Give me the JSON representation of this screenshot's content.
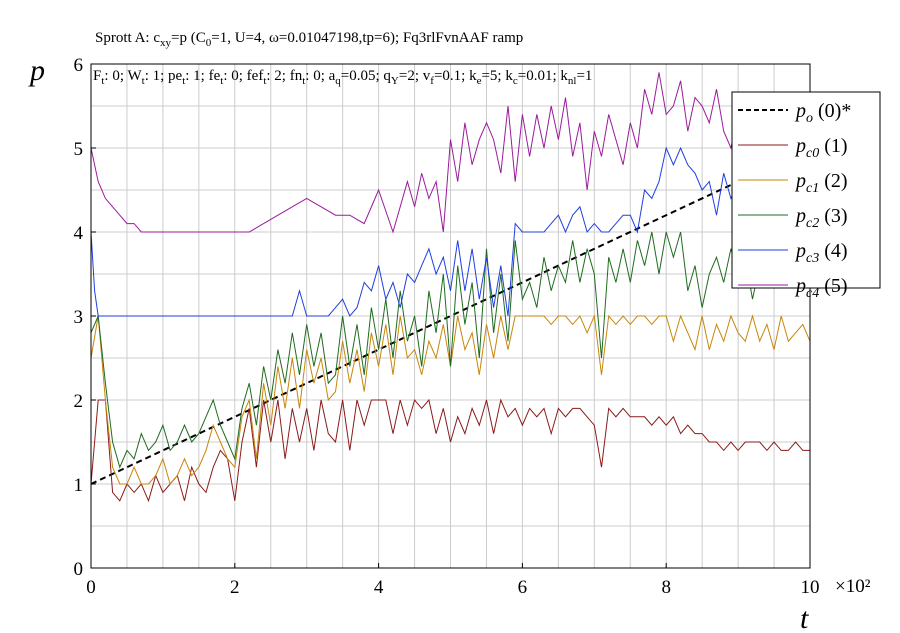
{
  "chart_data": {
    "type": "line",
    "title": "Sprott A: c_xy=p (C_0=1, U=4, ω=0.01047198,tp=6); Fq3rlFvnAAF ramp",
    "title_parts": [
      "Sprott A: c",
      "xy",
      "=p (C",
      "0",
      "=1, U=4, ω=0.01047198,tp=6); Fq3rlFvnAAF ramp"
    ],
    "subtitle": "F_t: 0; W_t: 1; pe_t: 1; fe_t: 0; fef_t: 2; fn_t: 0; a_q=0.05; q_Y=2; v_f=0.1; k_e=5; k_c=0.01; k_nl=1",
    "subtitle_parts": [
      "F",
      "t",
      ": 0; W",
      "t",
      ": 1; pe",
      "t",
      ": 1; fe",
      "t",
      ": 0; fef",
      "t",
      ": 2; fn",
      "t",
      ": 0; a",
      "q",
      "=0.05; q",
      "Y",
      "=2; v",
      "f",
      "=0.1; k",
      "e",
      "=5; k",
      "c",
      "=0.01; k",
      "nl",
      "=1"
    ],
    "xlabel": "t",
    "ylabel": "p",
    "x_multiplier_label": "×10²",
    "xlim": [
      0,
      10
    ],
    "ylim": [
      0,
      6
    ],
    "x_ticks": [
      "0",
      "2",
      "4",
      "6",
      "8",
      "10"
    ],
    "y_ticks": [
      "0",
      "1",
      "2",
      "3",
      "4",
      "5",
      "6"
    ],
    "grid": true,
    "legend_position": "top-right",
    "series": [
      {
        "name": "p_o (0)*",
        "label_main": "p",
        "label_sub": "o",
        "label_tail": " (0)*",
        "color": "#000000",
        "dashed": true,
        "x": [
          0,
          10
        ],
        "y": [
          1.0,
          5.0
        ]
      },
      {
        "name": "p_c0 (1)",
        "label_main": "p",
        "label_sub": "c0",
        "label_tail": " (1)",
        "color": "#8b1a1a",
        "dashed": false,
        "x": [
          0,
          0.1,
          0.2,
          0.3,
          0.4,
          0.5,
          0.6,
          0.7,
          0.8,
          0.9,
          1.0,
          1.1,
          1.2,
          1.3,
          1.4,
          1.5,
          1.6,
          1.7,
          1.8,
          1.9,
          2.0,
          2.1,
          2.2,
          2.3,
          2.4,
          2.5,
          2.6,
          2.7,
          2.8,
          2.9,
          3.0,
          3.1,
          3.2,
          3.3,
          3.4,
          3.5,
          3.6,
          3.7,
          3.8,
          3.9,
          4.0,
          4.1,
          4.2,
          4.3,
          4.4,
          4.5,
          4.6,
          4.7,
          4.8,
          4.9,
          5.0,
          5.1,
          5.2,
          5.3,
          5.4,
          5.5,
          5.6,
          5.7,
          5.8,
          5.9,
          6.0,
          6.1,
          6.2,
          6.3,
          6.4,
          6.5,
          6.6,
          6.7,
          6.8,
          6.9,
          7.0,
          7.1,
          7.2,
          7.3,
          7.4,
          7.5,
          7.6,
          7.7,
          7.8,
          7.9,
          8.0,
          8.1,
          8.2,
          8.3,
          8.4,
          8.5,
          8.6,
          8.7,
          8.8,
          8.9,
          9.0,
          9.1,
          9.2,
          9.3,
          9.4,
          9.5,
          9.6,
          9.7,
          9.8,
          9.9,
          10.0
        ],
        "y": [
          1.0,
          2.0,
          2.0,
          0.9,
          0.8,
          1.0,
          0.9,
          1.0,
          0.8,
          1.1,
          0.9,
          1.0,
          1.1,
          0.8,
          1.2,
          1.0,
          0.9,
          1.2,
          1.4,
          1.3,
          0.8,
          1.5,
          1.9,
          1.2,
          2.0,
          1.5,
          2.0,
          1.3,
          1.9,
          1.5,
          1.9,
          1.4,
          2.0,
          1.6,
          1.5,
          2.0,
          1.4,
          2.0,
          1.7,
          2.0,
          2.0,
          2.0,
          1.6,
          2.0,
          1.7,
          2.0,
          1.9,
          2.0,
          1.6,
          1.9,
          1.5,
          1.8,
          1.6,
          1.9,
          1.7,
          2.0,
          1.6,
          2.0,
          1.8,
          1.9,
          1.7,
          1.9,
          1.8,
          1.9,
          1.6,
          1.9,
          1.8,
          1.9,
          1.9,
          1.8,
          1.7,
          1.2,
          1.9,
          1.8,
          1.9,
          1.8,
          1.8,
          1.8,
          1.7,
          1.8,
          1.7,
          1.8,
          1.6,
          1.7,
          1.6,
          1.6,
          1.5,
          1.5,
          1.4,
          1.5,
          1.4,
          1.5,
          1.5,
          1.5,
          1.4,
          1.5,
          1.4,
          1.4,
          1.5,
          1.4,
          1.4
        ]
      },
      {
        "name": "p_c1 (2)",
        "label_main": "p",
        "label_sub": "c1",
        "label_tail": " (2)",
        "color": "#c8860a",
        "dashed": false,
        "x": [
          0,
          0.1,
          0.2,
          0.3,
          0.4,
          0.5,
          0.6,
          0.7,
          0.8,
          0.9,
          1.0,
          1.1,
          1.2,
          1.3,
          1.4,
          1.5,
          1.6,
          1.7,
          1.8,
          1.9,
          2.0,
          2.1,
          2.2,
          2.3,
          2.4,
          2.5,
          2.6,
          2.7,
          2.8,
          2.9,
          3.0,
          3.1,
          3.2,
          3.3,
          3.4,
          3.5,
          3.6,
          3.7,
          3.8,
          3.9,
          4.0,
          4.1,
          4.2,
          4.3,
          4.4,
          4.5,
          4.6,
          4.7,
          4.8,
          4.9,
          5.0,
          5.1,
          5.2,
          5.3,
          5.4,
          5.5,
          5.6,
          5.7,
          5.8,
          5.9,
          6.0,
          6.1,
          6.2,
          6.3,
          6.4,
          6.5,
          6.6,
          6.7,
          6.8,
          6.9,
          7.0,
          7.1,
          7.2,
          7.3,
          7.4,
          7.5,
          7.6,
          7.7,
          7.8,
          7.9,
          8.0,
          8.1,
          8.2,
          8.3,
          8.4,
          8.5,
          8.6,
          8.7,
          8.8,
          8.9,
          9.0,
          9.1,
          9.2,
          9.3,
          9.4,
          9.5,
          9.6,
          9.7,
          9.8,
          9.9,
          10.0
        ],
        "y": [
          2.5,
          3.0,
          2.0,
          1.2,
          1.0,
          1.0,
          1.2,
          1.0,
          1.0,
          1.1,
          1.3,
          1.0,
          1.1,
          1.3,
          1.1,
          1.2,
          1.4,
          1.7,
          1.5,
          1.3,
          1.2,
          1.8,
          2.0,
          1.3,
          2.2,
          1.7,
          2.4,
          1.9,
          2.5,
          1.9,
          2.6,
          2.2,
          2.5,
          2.0,
          2.1,
          2.7,
          2.2,
          2.6,
          2.1,
          2.8,
          2.4,
          2.9,
          2.3,
          3.0,
          2.5,
          2.6,
          2.3,
          2.7,
          2.5,
          2.9,
          2.4,
          3.0,
          2.6,
          2.8,
          2.3,
          2.9,
          2.5,
          3.0,
          2.6,
          3.0,
          3.0,
          3.0,
          3.0,
          3.0,
          2.9,
          3.0,
          3.0,
          2.9,
          3.0,
          2.8,
          3.0,
          2.3,
          3.0,
          2.9,
          3.0,
          2.9,
          3.0,
          3.0,
          2.9,
          3.0,
          3.0,
          2.7,
          3.0,
          2.8,
          2.6,
          3.0,
          2.6,
          2.9,
          2.7,
          3.0,
          2.8,
          2.7,
          3.0,
          2.7,
          2.9,
          2.6,
          3.0,
          2.7,
          2.8,
          2.9,
          2.7
        ]
      },
      {
        "name": "p_c2 (3)",
        "label_main": "p",
        "label_sub": "c2",
        "label_tail": " (3)",
        "color": "#1e6b1e",
        "dashed": false,
        "x": [
          0,
          0.1,
          0.2,
          0.3,
          0.4,
          0.5,
          0.6,
          0.7,
          0.8,
          0.9,
          1.0,
          1.1,
          1.2,
          1.3,
          1.4,
          1.5,
          1.6,
          1.7,
          1.8,
          1.9,
          2.0,
          2.1,
          2.2,
          2.3,
          2.4,
          2.5,
          2.6,
          2.7,
          2.8,
          2.9,
          3.0,
          3.1,
          3.2,
          3.3,
          3.4,
          3.5,
          3.6,
          3.7,
          3.8,
          3.9,
          4.0,
          4.1,
          4.2,
          4.3,
          4.4,
          4.5,
          4.6,
          4.7,
          4.8,
          4.9,
          5.0,
          5.1,
          5.2,
          5.3,
          5.4,
          5.5,
          5.6,
          5.7,
          5.8,
          5.9,
          6.0,
          6.1,
          6.2,
          6.3,
          6.4,
          6.5,
          6.6,
          6.7,
          6.8,
          6.9,
          7.0,
          7.1,
          7.2,
          7.3,
          7.4,
          7.5,
          7.6,
          7.7,
          7.8,
          7.9,
          8.0,
          8.1,
          8.2,
          8.3,
          8.4,
          8.5,
          8.6,
          8.7,
          8.8,
          8.9,
          9.0,
          9.1,
          9.2,
          9.3,
          9.4,
          9.5,
          9.6,
          9.7,
          9.8,
          9.9,
          10.0
        ],
        "y": [
          2.8,
          3.0,
          2.2,
          1.5,
          1.2,
          1.4,
          1.3,
          1.6,
          1.4,
          1.5,
          1.7,
          1.4,
          1.5,
          1.7,
          1.5,
          1.6,
          1.8,
          2.0,
          1.7,
          1.5,
          1.3,
          1.9,
          2.2,
          1.7,
          2.4,
          2.0,
          2.6,
          2.2,
          2.8,
          2.3,
          2.9,
          2.4,
          2.8,
          2.2,
          2.3,
          3.0,
          2.4,
          2.9,
          2.3,
          3.1,
          2.6,
          3.2,
          2.5,
          3.3,
          2.7,
          3.0,
          2.4,
          3.3,
          2.8,
          3.5,
          2.4,
          3.6,
          2.9,
          3.4,
          2.5,
          3.8,
          2.8,
          3.5,
          2.7,
          3.9,
          3.2,
          3.4,
          3.1,
          3.7,
          3.3,
          3.6,
          3.4,
          3.9,
          3.4,
          3.8,
          3.5,
          2.5,
          3.7,
          3.4,
          3.8,
          3.4,
          3.9,
          3.6,
          4.0,
          3.5,
          4.0,
          3.7,
          4.0,
          3.3,
          3.6,
          3.1,
          3.5,
          3.7,
          3.4,
          3.8,
          3.5,
          3.7,
          3.2,
          3.6,
          3.5,
          3.8,
          3.6,
          3.5,
          3.9,
          3.6,
          3.6
        ]
      },
      {
        "name": "p_c3 (4)",
        "label_main": "p",
        "label_sub": "c3",
        "label_tail": " (4)",
        "color": "#1f3fe0",
        "dashed": false,
        "x": [
          0,
          0.05,
          0.1,
          0.2,
          0.4,
          0.6,
          0.8,
          1.0,
          1.2,
          1.4,
          1.6,
          1.8,
          2.0,
          2.2,
          2.4,
          2.6,
          2.8,
          2.9,
          3.0,
          3.1,
          3.2,
          3.3,
          3.4,
          3.5,
          3.6,
          3.7,
          3.8,
          3.9,
          4.0,
          4.1,
          4.2,
          4.3,
          4.4,
          4.5,
          4.6,
          4.7,
          4.8,
          4.9,
          5.0,
          5.1,
          5.2,
          5.3,
          5.4,
          5.5,
          5.6,
          5.7,
          5.8,
          5.9,
          6.0,
          6.1,
          6.2,
          6.3,
          6.4,
          6.5,
          6.6,
          6.7,
          6.8,
          6.9,
          7.0,
          7.1,
          7.2,
          7.3,
          7.4,
          7.5,
          7.6,
          7.7,
          7.8,
          7.9,
          8.0,
          8.1,
          8.2,
          8.3,
          8.4,
          8.5,
          8.6,
          8.7,
          8.8,
          8.9,
          9.0
        ],
        "y": [
          4.0,
          3.3,
          3.0,
          3.0,
          3.0,
          3.0,
          3.0,
          3.0,
          3.0,
          3.0,
          3.0,
          3.0,
          3.0,
          3.0,
          3.0,
          3.0,
          3.0,
          3.3,
          3.0,
          3.0,
          3.0,
          3.0,
          3.1,
          3.2,
          3.0,
          3.1,
          3.4,
          3.3,
          3.6,
          3.2,
          3.4,
          3.1,
          3.5,
          3.4,
          3.6,
          3.8,
          3.5,
          3.7,
          3.3,
          3.9,
          3.3,
          3.8,
          3.2,
          3.7,
          3.1,
          3.6,
          3.0,
          4.1,
          4.0,
          4.0,
          4.0,
          4.0,
          4.1,
          4.2,
          4.0,
          4.2,
          4.3,
          4.0,
          4.1,
          4.0,
          4.0,
          4.1,
          4.2,
          4.2,
          4.0,
          4.5,
          4.4,
          4.6,
          5.0,
          4.8,
          5.0,
          4.8,
          4.7,
          4.5,
          4.6,
          4.2,
          4.7,
          4.4,
          4.6
        ]
      },
      {
        "name": "p_c4 (5)",
        "label_main": "p",
        "label_sub": "c4",
        "label_tail": " (5)",
        "color": "#9b1a9b",
        "dashed": false,
        "x": [
          0,
          0.1,
          0.2,
          0.3,
          0.4,
          0.5,
          0.6,
          0.7,
          0.8,
          1.0,
          1.2,
          1.4,
          1.6,
          1.8,
          2.0,
          2.2,
          2.4,
          2.6,
          2.8,
          3.0,
          3.2,
          3.4,
          3.6,
          3.8,
          4.0,
          4.2,
          4.4,
          4.5,
          4.6,
          4.7,
          4.8,
          4.9,
          5.0,
          5.1,
          5.2,
          5.3,
          5.4,
          5.5,
          5.6,
          5.7,
          5.8,
          5.9,
          6.0,
          6.1,
          6.2,
          6.3,
          6.4,
          6.5,
          6.6,
          6.7,
          6.8,
          6.9,
          7.0,
          7.1,
          7.2,
          7.3,
          7.4,
          7.5,
          7.6,
          7.7,
          7.8,
          7.9,
          8.0,
          8.1,
          8.2,
          8.3,
          8.4,
          8.5,
          8.6,
          8.7,
          8.8,
          8.9,
          9.0
        ],
        "y": [
          5.0,
          4.6,
          4.4,
          4.3,
          4.2,
          4.1,
          4.1,
          4.0,
          4.0,
          4.0,
          4.0,
          4.0,
          4.0,
          4.0,
          4.0,
          4.0,
          4.1,
          4.2,
          4.3,
          4.4,
          4.3,
          4.2,
          4.2,
          4.1,
          4.5,
          4.0,
          4.6,
          4.3,
          4.7,
          4.4,
          4.6,
          4.0,
          5.1,
          4.6,
          5.3,
          4.8,
          5.1,
          5.3,
          5.1,
          4.7,
          5.5,
          4.6,
          5.4,
          4.9,
          5.4,
          5.0,
          5.5,
          5.1,
          5.6,
          4.9,
          5.3,
          4.5,
          5.2,
          4.9,
          5.4,
          5.1,
          4.8,
          5.3,
          5.0,
          5.7,
          5.4,
          5.9,
          5.4,
          5.5,
          5.8,
          5.2,
          5.6,
          5.5,
          5.3,
          5.7,
          5.2,
          5.0,
          5.4
        ]
      }
    ]
  }
}
